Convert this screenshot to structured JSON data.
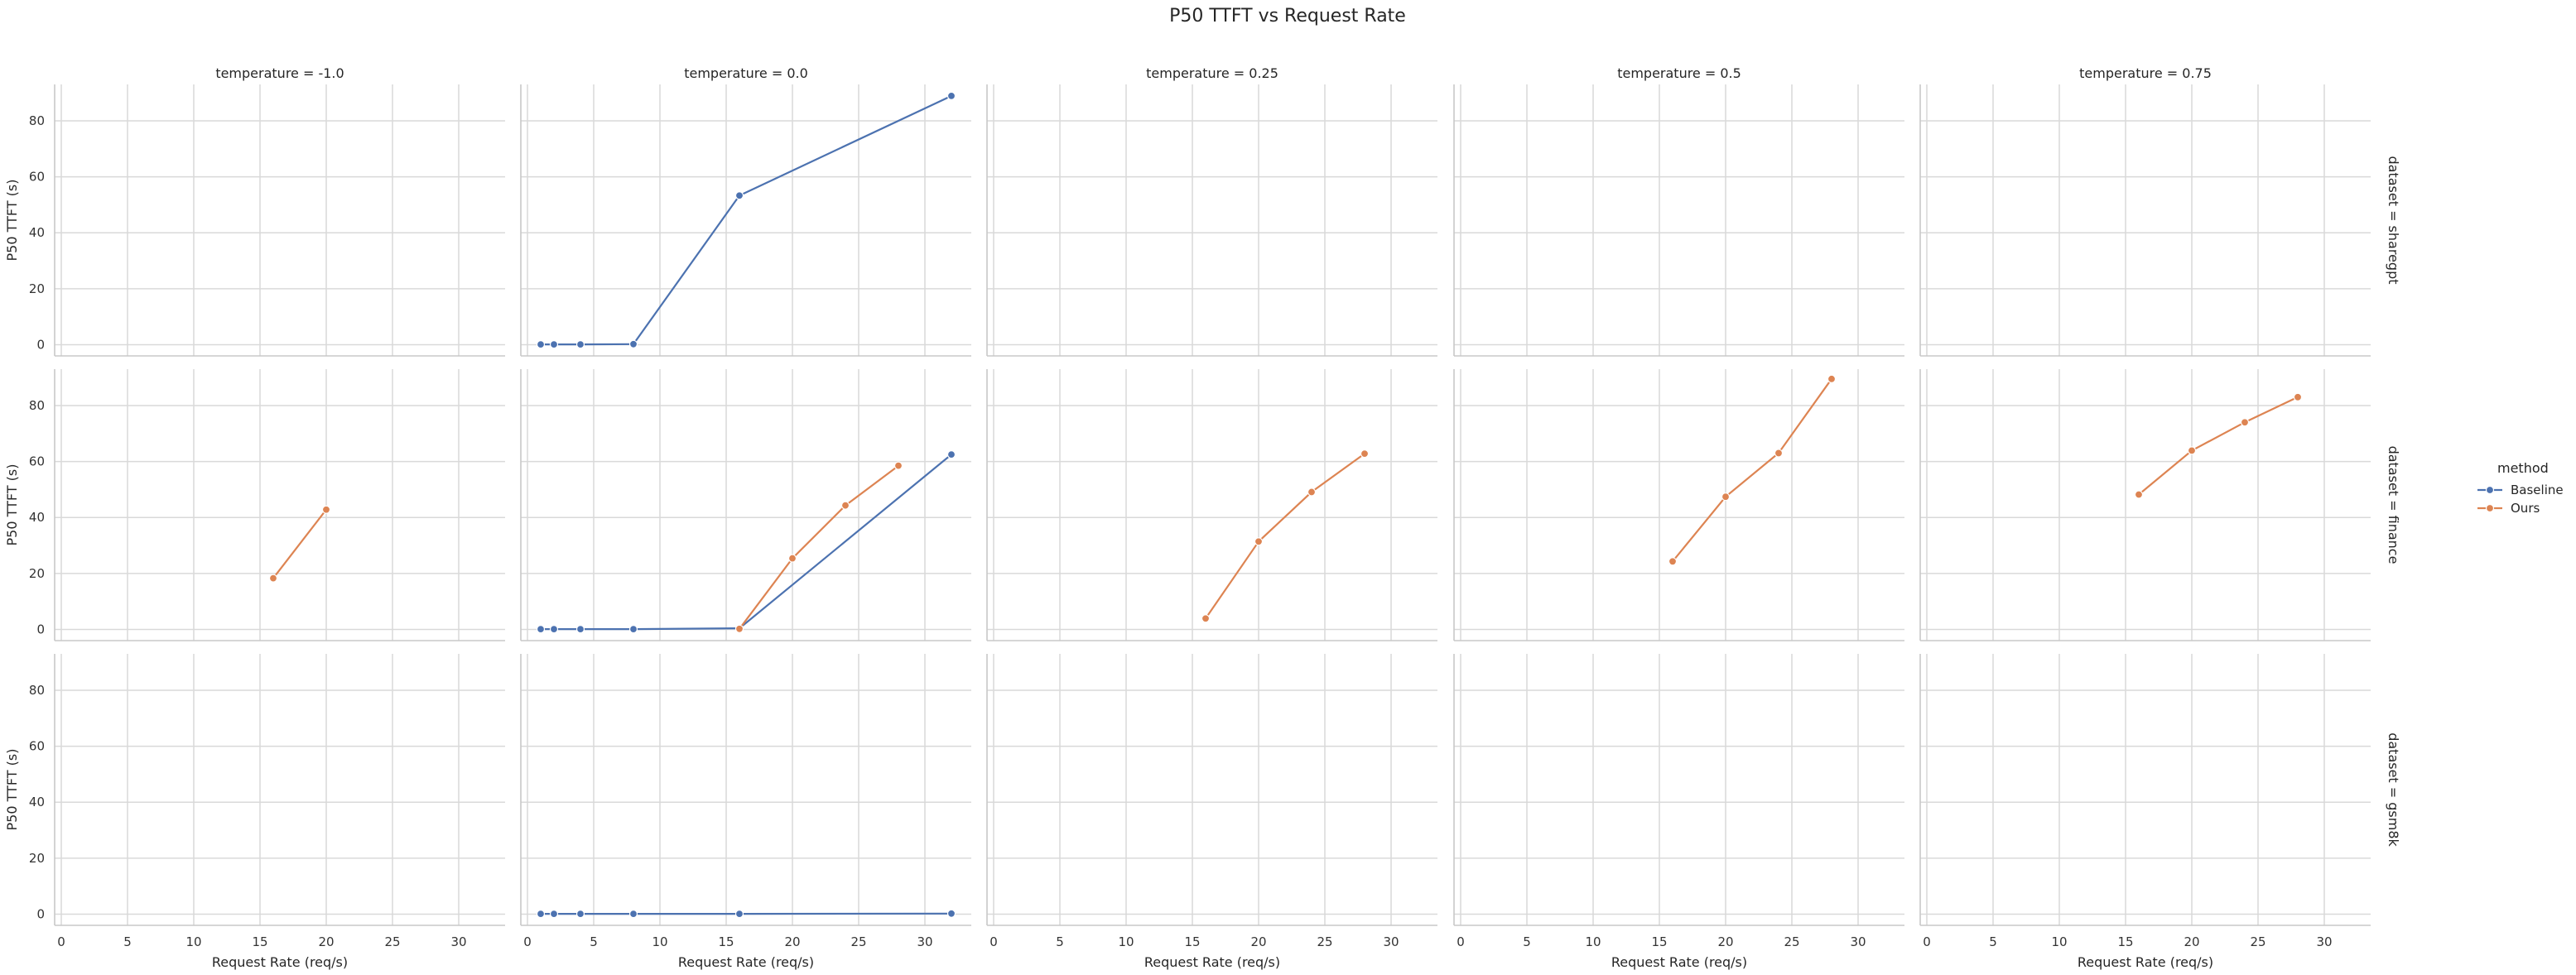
{
  "chart_data": {
    "type": "line",
    "title": "P50 TTFT vs Request Rate",
    "xlabel": "Request Rate (req/s)",
    "ylabel": "P50 TTFT (s)",
    "xlim": [
      -0.5,
      33.5
    ],
    "ylim": [
      -4,
      93
    ],
    "xticks": [
      0,
      5,
      10,
      15,
      20,
      25,
      30
    ],
    "yticks": [
      0,
      20,
      40,
      60,
      80
    ],
    "grid": true,
    "col_facet": "temperature",
    "row_facet": "dataset",
    "columns": [
      "temperature = -1.0",
      "temperature = 0.0",
      "temperature = 0.25",
      "temperature = 0.5",
      "temperature = 0.75"
    ],
    "rows": [
      "dataset = sharegpt",
      "dataset = finance",
      "dataset = gsm8k"
    ],
    "legend": {
      "title": "method",
      "position": "right",
      "entries": [
        {
          "name": "Baseline",
          "color": "#4c72b0"
        },
        {
          "name": "Ours",
          "color": "#dd8452"
        }
      ]
    },
    "panels": [
      {
        "row": 0,
        "col": 1,
        "series": [
          {
            "name": "Baseline",
            "x": [
              1,
              2,
              4,
              8,
              16,
              32
            ],
            "y": [
              0.1,
              0.1,
              0.1,
              0.2,
              53.3,
              88.9
            ]
          }
        ]
      },
      {
        "row": 1,
        "col": 0,
        "series": [
          {
            "name": "Ours",
            "x": [
              16,
              20
            ],
            "y": [
              18.3,
              42.8
            ]
          }
        ]
      },
      {
        "row": 1,
        "col": 1,
        "series": [
          {
            "name": "Baseline",
            "x": [
              1,
              2,
              4,
              8,
              16,
              32
            ],
            "y": [
              0.1,
              0.1,
              0.1,
              0.1,
              0.4,
              62.5
            ]
          },
          {
            "name": "Ours",
            "x": [
              16,
              20,
              24,
              28
            ],
            "y": [
              0.2,
              25.4,
              44.3,
              58.5
            ]
          }
        ]
      },
      {
        "row": 1,
        "col": 2,
        "series": [
          {
            "name": "Ours",
            "x": [
              16,
              20,
              24,
              28
            ],
            "y": [
              3.9,
              31.4,
              49.1,
              62.8
            ]
          }
        ]
      },
      {
        "row": 1,
        "col": 3,
        "series": [
          {
            "name": "Ours",
            "x": [
              16,
              20,
              24,
              28
            ],
            "y": [
              24.3,
              47.4,
              63.0,
              89.5
            ]
          }
        ]
      },
      {
        "row": 1,
        "col": 4,
        "series": [
          {
            "name": "Ours",
            "x": [
              16,
              20,
              24,
              28
            ],
            "y": [
              48.2,
              63.9,
              74.0,
              83.0
            ]
          }
        ]
      },
      {
        "row": 2,
        "col": 1,
        "series": [
          {
            "name": "Baseline",
            "x": [
              1,
              2,
              4,
              8,
              16,
              32
            ],
            "y": [
              0.1,
              0.1,
              0.1,
              0.1,
              0.1,
              0.2
            ]
          }
        ]
      }
    ]
  }
}
